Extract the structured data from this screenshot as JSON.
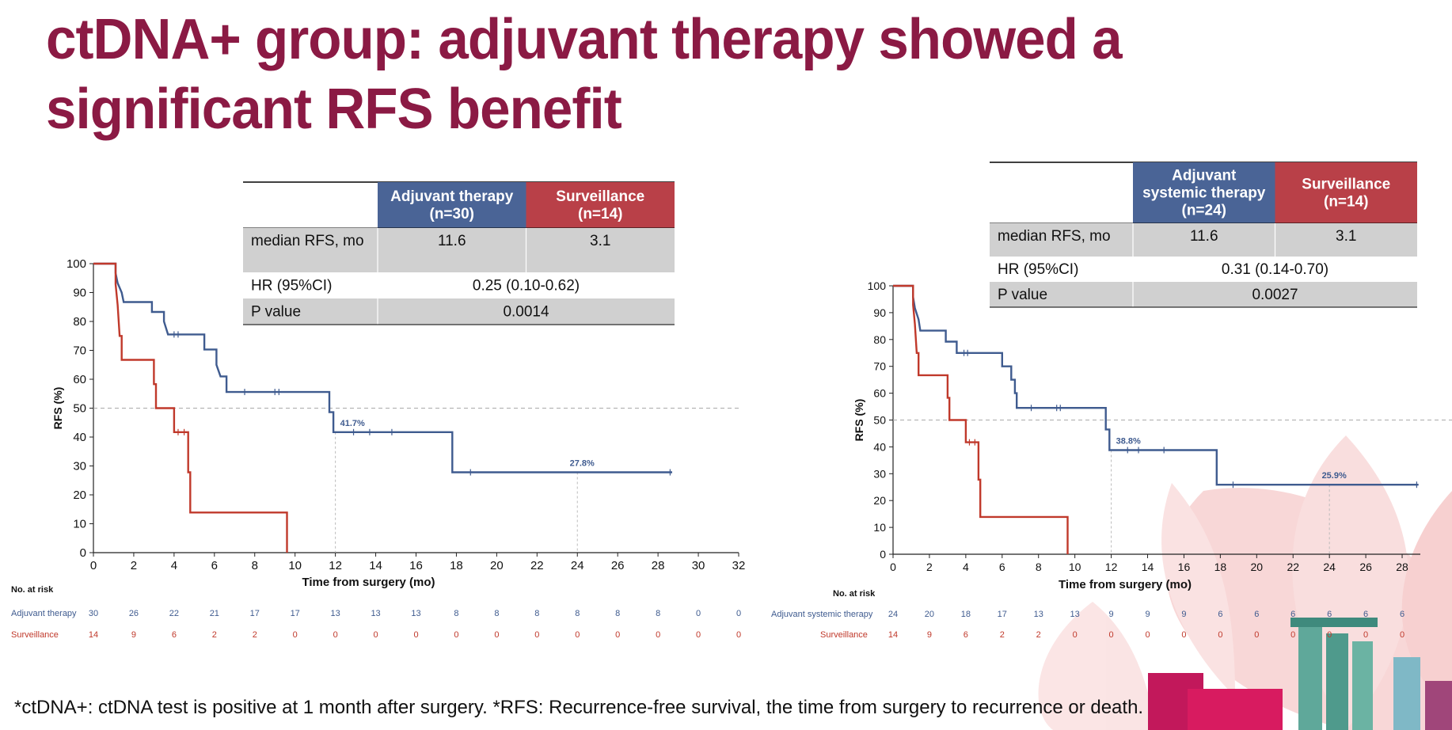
{
  "slide": {
    "title": "ctDNA+ group: adjuvant therapy showed a significant RFS benefit",
    "footnote": "*ctDNA+: ctDNA test is positive at 1 month after surgery. *RFS: Recurrence-free survival, the time from surgery to recurrence or death.",
    "colors": {
      "title": "#8b1a44",
      "adjuvant": "#3f5b8f",
      "surveillance": "#c0392b",
      "header_blue": "#4a6496",
      "header_red": "#b94048",
      "table_gray": "#d0d0d0"
    }
  },
  "panels": [
    {
      "table": {
        "col1": "Adjuvant therapy\n(n=30)",
        "col2": "Surveillance\n(n=14)",
        "rows": [
          {
            "label": "median RFS, mo",
            "v1": "11.6",
            "v2": "3.1",
            "span": false
          },
          {
            "label": "HR (95%CI)",
            "v": "0.25 (0.10-0.62)",
            "span": true
          },
          {
            "label": "P value",
            "v": "0.0014",
            "span": true
          }
        ]
      },
      "risk": {
        "heading": "No. at risk",
        "adjuvant_label": "Adjuvant therapy",
        "surveillance_label": "Surveillance",
        "adjuvant": [
          "30",
          "26",
          "22",
          "21",
          "17",
          "17",
          "13",
          "13",
          "13",
          "8",
          "8",
          "8",
          "8",
          "8",
          "8",
          "0",
          "0"
        ],
        "surveillance": [
          "14",
          "9",
          "6",
          "2",
          "2",
          "0",
          "0",
          "0",
          "0",
          "0",
          "0",
          "0",
          "0",
          "0",
          "0",
          "0",
          "0"
        ]
      }
    },
    {
      "table": {
        "col1": "Adjuvant\nsystemic therapy\n(n=24)",
        "col2": "Surveillance\n(n=14)",
        "rows": [
          {
            "label": "median RFS, mo",
            "v1": "11.6",
            "v2": "3.1",
            "span": false
          },
          {
            "label": "HR (95%CI)",
            "v": "0.31 (0.14-0.70)",
            "span": true
          },
          {
            "label": "P value",
            "v": "0.0027",
            "span": true
          }
        ]
      },
      "risk": {
        "heading": "No. at risk",
        "adjuvant_label": "Adjuvant systemic therapy",
        "surveillance_label": "Surveillance",
        "adjuvant": [
          "24",
          "20",
          "18",
          "17",
          "13",
          "13",
          "9",
          "9",
          "9",
          "6",
          "6",
          "6",
          "6",
          "6",
          "6"
        ],
        "surveillance": [
          "14",
          "9",
          "6",
          "2",
          "2",
          "0",
          "0",
          "0",
          "0",
          "0",
          "0",
          "0",
          "0",
          "0",
          "0"
        ]
      }
    }
  ],
  "chart_data": [
    {
      "type": "line",
      "title": "",
      "xlabel": "Time from surgery (mo)",
      "ylabel": "RFS (%)",
      "xlim": [
        0,
        32
      ],
      "ylim": [
        0,
        100
      ],
      "xticks": [
        0,
        2,
        4,
        6,
        8,
        10,
        12,
        14,
        16,
        18,
        20,
        22,
        24,
        26,
        28,
        30,
        32
      ],
      "yticks": [
        0,
        10,
        20,
        30,
        40,
        50,
        60,
        70,
        80,
        90,
        100
      ],
      "reference_line_y": 50,
      "annotations": [
        {
          "text": "41.7%",
          "x": 12,
          "y": 41.7
        },
        {
          "text": "27.8%",
          "x": 24,
          "y": 27.8
        }
      ],
      "series": [
        {
          "name": "Adjuvant therapy",
          "color": "#3f5b8f",
          "steps": [
            [
              0,
              100
            ],
            [
              1.1,
              100
            ],
            [
              1.1,
              96.7
            ],
            [
              1.2,
              93.3
            ],
            [
              1.4,
              90
            ],
            [
              1.5,
              86.7
            ],
            [
              2.9,
              86.7
            ],
            [
              2.9,
              83.3
            ],
            [
              3.5,
              83.3
            ],
            [
              3.5,
              80
            ],
            [
              3.7,
              75.5
            ],
            [
              5.5,
              75.5
            ],
            [
              5.5,
              70.3
            ],
            [
              6.1,
              70.3
            ],
            [
              6.1,
              65
            ],
            [
              6.3,
              61
            ],
            [
              6.6,
              61
            ],
            [
              6.6,
              55.6
            ],
            [
              11.7,
              55.6
            ],
            [
              11.7,
              48.6
            ],
            [
              11.9,
              48.6
            ],
            [
              11.9,
              41.7
            ],
            [
              17.8,
              41.7
            ],
            [
              17.8,
              27.8
            ],
            [
              28.7,
              27.8
            ]
          ],
          "censor": [
            [
              4,
              75.5
            ],
            [
              4.2,
              75.5
            ],
            [
              7.5,
              55.6
            ],
            [
              9,
              55.6
            ],
            [
              9.2,
              55.6
            ],
            [
              12.9,
              41.7
            ],
            [
              13.7,
              41.7
            ],
            [
              14.8,
              41.7
            ],
            [
              18.7,
              27.8
            ],
            [
              28.6,
              27.8
            ]
          ]
        },
        {
          "name": "Surveillance",
          "color": "#c0392b",
          "steps": [
            [
              0,
              100
            ],
            [
              1.1,
              100
            ],
            [
              1.1,
              92.9
            ],
            [
              1.2,
              85.7
            ],
            [
              1.3,
              75
            ],
            [
              1.4,
              75
            ],
            [
              1.4,
              66.7
            ],
            [
              3,
              66.7
            ],
            [
              3,
              58.3
            ],
            [
              3.1,
              58.3
            ],
            [
              3.1,
              50
            ],
            [
              4,
              50
            ],
            [
              4,
              41.7
            ],
            [
              4.7,
              41.7
            ],
            [
              4.7,
              27.8
            ],
            [
              4.8,
              27.8
            ],
            [
              4.8,
              13.9
            ],
            [
              9.6,
              13.9
            ],
            [
              9.6,
              0
            ]
          ],
          "censor": [
            [
              4.2,
              41.7
            ],
            [
              4.5,
              41.7
            ]
          ]
        }
      ]
    },
    {
      "type": "line",
      "title": "",
      "xlabel": "Time from surgery (mo)",
      "ylabel": "RFS (%)",
      "xlim": [
        0,
        29
      ],
      "ylim": [
        0,
        100
      ],
      "xticks": [
        0,
        2,
        4,
        6,
        8,
        10,
        12,
        14,
        16,
        18,
        20,
        22,
        24,
        26,
        28
      ],
      "yticks": [
        0,
        10,
        20,
        30,
        40,
        50,
        60,
        70,
        80,
        90,
        100
      ],
      "reference_line_y": 50,
      "annotations": [
        {
          "text": "38.8%",
          "x": 12,
          "y": 38.8
        },
        {
          "text": "25.9%",
          "x": 24,
          "y": 25.9
        }
      ],
      "series": [
        {
          "name": "Adjuvant systemic therapy",
          "color": "#3f5b8f",
          "steps": [
            [
              0,
              100
            ],
            [
              1.1,
              100
            ],
            [
              1.1,
              95.8
            ],
            [
              1.2,
              91.7
            ],
            [
              1.4,
              87.5
            ],
            [
              1.5,
              83.3
            ],
            [
              2.9,
              83.3
            ],
            [
              2.9,
              79.2
            ],
            [
              3.5,
              79.2
            ],
            [
              3.5,
              75
            ],
            [
              6,
              75
            ],
            [
              6,
              70
            ],
            [
              6.5,
              70
            ],
            [
              6.5,
              65
            ],
            [
              6.7,
              65
            ],
            [
              6.7,
              60
            ],
            [
              6.8,
              60
            ],
            [
              6.8,
              54.5
            ],
            [
              11.7,
              54.5
            ],
            [
              11.7,
              46.5
            ],
            [
              11.9,
              46.5
            ],
            [
              11.9,
              38.8
            ],
            [
              17.8,
              38.8
            ],
            [
              17.8,
              25.9
            ],
            [
              28.9,
              25.9
            ]
          ],
          "censor": [
            [
              3.9,
              75
            ],
            [
              4.1,
              75
            ],
            [
              7.6,
              54.5
            ],
            [
              9,
              54.5
            ],
            [
              9.2,
              54.5
            ],
            [
              12.9,
              38.8
            ],
            [
              13.5,
              38.8
            ],
            [
              14.9,
              38.8
            ],
            [
              18.7,
              25.9
            ],
            [
              28.8,
              25.9
            ]
          ]
        },
        {
          "name": "Surveillance",
          "color": "#c0392b",
          "steps": [
            [
              0,
              100
            ],
            [
              1.1,
              100
            ],
            [
              1.1,
              92.9
            ],
            [
              1.2,
              85.7
            ],
            [
              1.3,
              75
            ],
            [
              1.4,
              75
            ],
            [
              1.4,
              66.7
            ],
            [
              3,
              66.7
            ],
            [
              3,
              58.3
            ],
            [
              3.1,
              58.3
            ],
            [
              3.1,
              50
            ],
            [
              4,
              50
            ],
            [
              4,
              41.7
            ],
            [
              4.7,
              41.7
            ],
            [
              4.7,
              27.8
            ],
            [
              4.8,
              27.8
            ],
            [
              4.8,
              13.9
            ],
            [
              9.6,
              13.9
            ],
            [
              9.6,
              0
            ]
          ],
          "censor": [
            [
              4.2,
              41.7
            ],
            [
              4.5,
              41.7
            ]
          ]
        }
      ]
    }
  ]
}
